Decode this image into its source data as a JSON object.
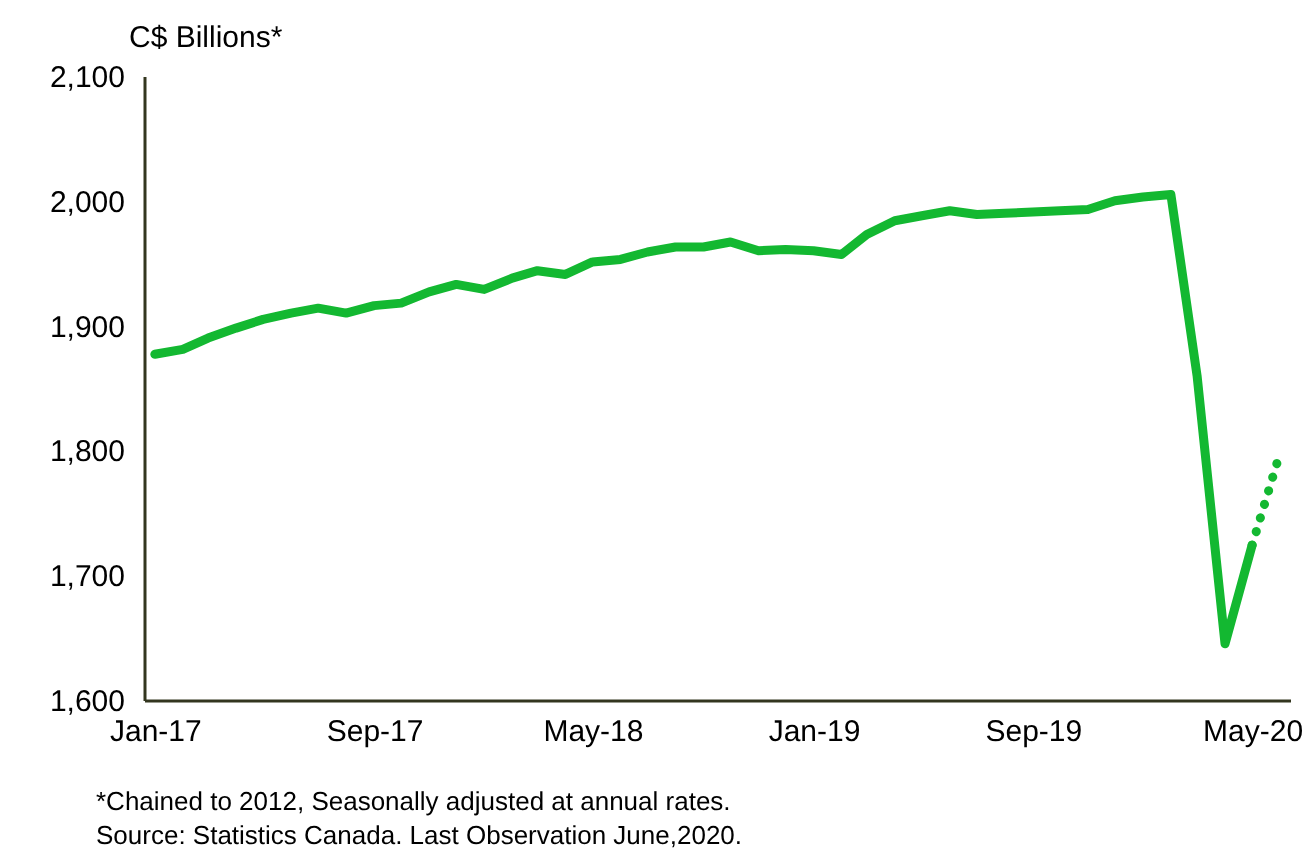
{
  "chart_data": {
    "type": "line",
    "ylabel": "C$ Billions*",
    "x": [
      "2017-01",
      "2017-02",
      "2017-03",
      "2017-04",
      "2017-05",
      "2017-06",
      "2017-07",
      "2017-08",
      "2017-09",
      "2017-10",
      "2017-11",
      "2017-12",
      "2018-01",
      "2018-02",
      "2018-03",
      "2018-04",
      "2018-05",
      "2018-06",
      "2018-07",
      "2018-08",
      "2018-09",
      "2018-10",
      "2018-11",
      "2018-12",
      "2019-01",
      "2019-02",
      "2019-03",
      "2019-04",
      "2019-05",
      "2019-06",
      "2019-07",
      "2019-08",
      "2019-09",
      "2019-10",
      "2019-11",
      "2019-12",
      "2020-01",
      "2020-02",
      "2020-03",
      "2020-04",
      "2020-05"
    ],
    "series": [
      {
        "color": "#13b831",
        "line_style": "solid",
        "values": [
          1877,
          1881,
          1890,
          1898,
          1905,
          1910,
          1914,
          1910,
          1916,
          1918,
          1927,
          1933,
          1929,
          1938,
          1944,
          1941,
          1951,
          1953,
          1959,
          1963,
          1963,
          1967,
          1960,
          1961,
          1960,
          1957,
          1973,
          1984,
          1988,
          1992,
          1989,
          1990,
          1991,
          1992,
          1993,
          2000,
          2003,
          2005,
          1860,
          1645,
          1724
        ]
      },
      {
        "color": "#13b831",
        "line_style": "dotted",
        "x": [
          "2020-05",
          "2020-06"
        ],
        "values": [
          1724,
          1798
        ]
      }
    ],
    "xlim": [
      "2016-12-20",
      "2020-06-12"
    ],
    "xticks": [
      {
        "value": "2017-01",
        "label": "Jan-17"
      },
      {
        "value": "2017-09",
        "label": "Sep-17"
      },
      {
        "value": "2018-05",
        "label": "May-18"
      },
      {
        "value": "2019-01",
        "label": "Jan-19"
      },
      {
        "value": "2019-09",
        "label": "Sep-19"
      },
      {
        "value": "2020-05",
        "label": "May-20"
      }
    ],
    "ylim": [
      1600,
      2100
    ],
    "yticks": [
      {
        "value": 1600,
        "label": "1,600"
      },
      {
        "value": 1700,
        "label": "1,700"
      },
      {
        "value": 1800,
        "label": "1,800"
      },
      {
        "value": 1900,
        "label": "1,900"
      },
      {
        "value": 2000,
        "label": "2,000"
      },
      {
        "value": 2100,
        "label": "2,100"
      }
    ],
    "annotations": [
      "*Chained to 2012, Seasonally adjusted at annual rates.",
      "Source: Statistics Canada. Last Observation June,2020."
    ]
  }
}
